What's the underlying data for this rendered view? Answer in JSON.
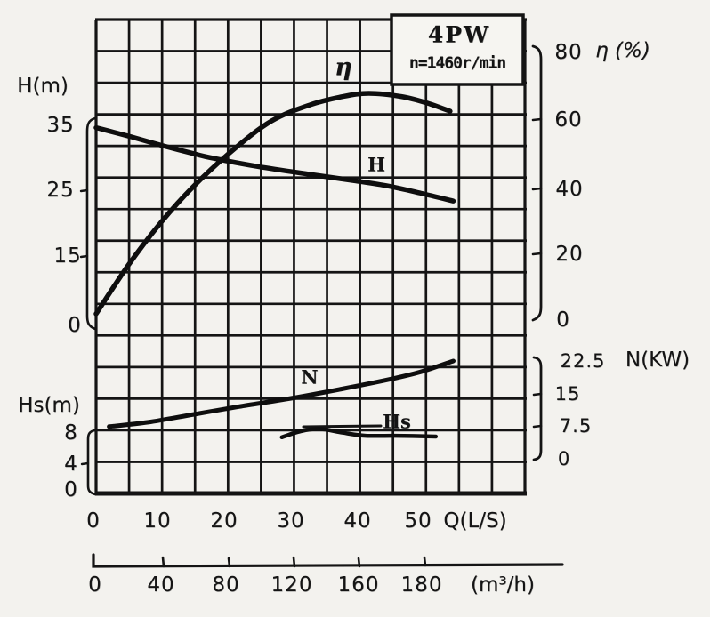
{
  "title_box": {
    "model": "4PW",
    "speed": "n=1460r/min"
  },
  "axes": {
    "h": {
      "label": "H(m)",
      "ticks": [
        "35",
        "25",
        "15",
        "0"
      ]
    },
    "hs": {
      "label": "Hs(m)",
      "ticks": [
        "8",
        "4",
        "0"
      ]
    },
    "eta": {
      "label": "η (%)",
      "ticks": [
        "80",
        "60",
        "40",
        "20",
        "0"
      ]
    },
    "n": {
      "label": "N(KW)",
      "ticks": [
        "22.5",
        "15",
        "7.5",
        "0"
      ]
    },
    "q": {
      "label": "Q(L/S)",
      "ticks": [
        "0",
        "10",
        "20",
        "30",
        "40",
        "50"
      ]
    },
    "q2": {
      "label": "(m³/h)",
      "ticks": [
        "0",
        "40",
        "80",
        "120",
        "160",
        "180"
      ]
    }
  },
  "colors": {
    "ink": "#141414",
    "paper": "#f3f2ee"
  },
  "chart_data": {
    "type": "line",
    "title": "4PW n=1460r/min pump performance curves",
    "xlabel": "Q(L/S)",
    "x_secondary_label": "(m³/h)",
    "x_secondary_ticks": [
      0,
      40,
      80,
      120,
      160,
      180
    ],
    "x_ticks": [
      0,
      10,
      20,
      30,
      40,
      50
    ],
    "grid": true,
    "y_axes": [
      {
        "id": "H",
        "label": "H(m)",
        "side": "left",
        "ticks": [
          35,
          25,
          15,
          0
        ]
      },
      {
        "id": "Hs",
        "label": "Hs(m)",
        "side": "left",
        "ticks": [
          8,
          4,
          0
        ]
      },
      {
        "id": "eta",
        "label": "η (%)",
        "side": "right",
        "ticks": [
          80,
          60,
          40,
          20,
          0
        ]
      },
      {
        "id": "N",
        "label": "N(KW)",
        "side": "right",
        "ticks": [
          22.5,
          15,
          7.5,
          0
        ]
      }
    ],
    "series": [
      {
        "name": "η",
        "axis": "eta",
        "unit": "%",
        "points": [
          [
            0,
            0
          ],
          [
            5,
            15
          ],
          [
            10,
            28
          ],
          [
            15,
            39
          ],
          [
            21,
            50
          ],
          [
            27,
            59
          ],
          [
            33,
            64
          ],
          [
            38,
            66.5
          ],
          [
            42,
            67.5
          ],
          [
            47,
            66.5
          ],
          [
            51,
            64.5
          ],
          [
            54.5,
            62
          ]
        ]
      },
      {
        "name": "H",
        "axis": "H",
        "unit": "m",
        "points": [
          [
            0,
            34.5
          ],
          [
            5,
            33.2
          ],
          [
            10,
            31.8
          ],
          [
            15,
            30.5
          ],
          [
            18,
            29.8
          ],
          [
            25,
            28.5
          ],
          [
            33,
            27.3
          ],
          [
            40,
            26.3
          ],
          [
            45,
            25.5
          ],
          [
            50,
            24.4
          ],
          [
            55,
            23.2
          ]
        ]
      },
      {
        "name": "N",
        "axis": "N",
        "unit": "KW",
        "points": [
          [
            2,
            7.2
          ],
          [
            8,
            8.2
          ],
          [
            15,
            10
          ],
          [
            22,
            11.8
          ],
          [
            30,
            13.7
          ],
          [
            38,
            15.9
          ],
          [
            45,
            18
          ],
          [
            50,
            19.8
          ],
          [
            55,
            22.3
          ]
        ]
      },
      {
        "name": "Hs",
        "axis": "Hs",
        "unit": "m",
        "points": [
          [
            28.6,
            7.2
          ],
          [
            31.5,
            8.0
          ],
          [
            34.5,
            8.3
          ],
          [
            38,
            7.8
          ],
          [
            41.5,
            7.4
          ],
          [
            46,
            7.4
          ],
          [
            52.3,
            7.3
          ]
        ]
      }
    ]
  }
}
